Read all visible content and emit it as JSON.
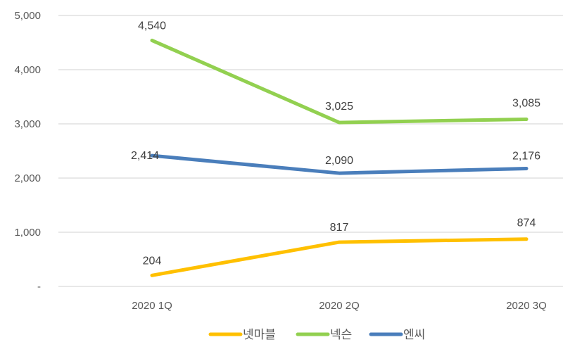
{
  "chart_data": {
    "type": "line",
    "title": "",
    "xlabel": "",
    "ylabel": "",
    "categories": [
      "2020 1Q",
      "2020 2Q",
      "2020 3Q"
    ],
    "series": [
      {
        "name": "넷마블",
        "color": "#FFC000",
        "values": [
          204,
          817,
          874
        ],
        "labels": [
          "204",
          "817",
          "874"
        ]
      },
      {
        "name": "넥슨",
        "color": "#92D050",
        "values": [
          4540,
          3025,
          3085
        ],
        "labels": [
          "4,540",
          "3,025",
          "3,085"
        ]
      },
      {
        "name": "엔씨",
        "color": "#4A7EBB",
        "values": [
          2414,
          2090,
          2176
        ],
        "labels": [
          "2,414",
          "2,090",
          "2,176"
        ]
      }
    ],
    "ylim": [
      0,
      5000
    ],
    "yticks": [
      0,
      1000,
      2000,
      3000,
      4000,
      5000
    ],
    "ytick_labels": [
      "-",
      "1,000",
      "2,000",
      "3,000",
      "4,000",
      "5,000"
    ],
    "grid": true,
    "legend_position": "bottom"
  }
}
